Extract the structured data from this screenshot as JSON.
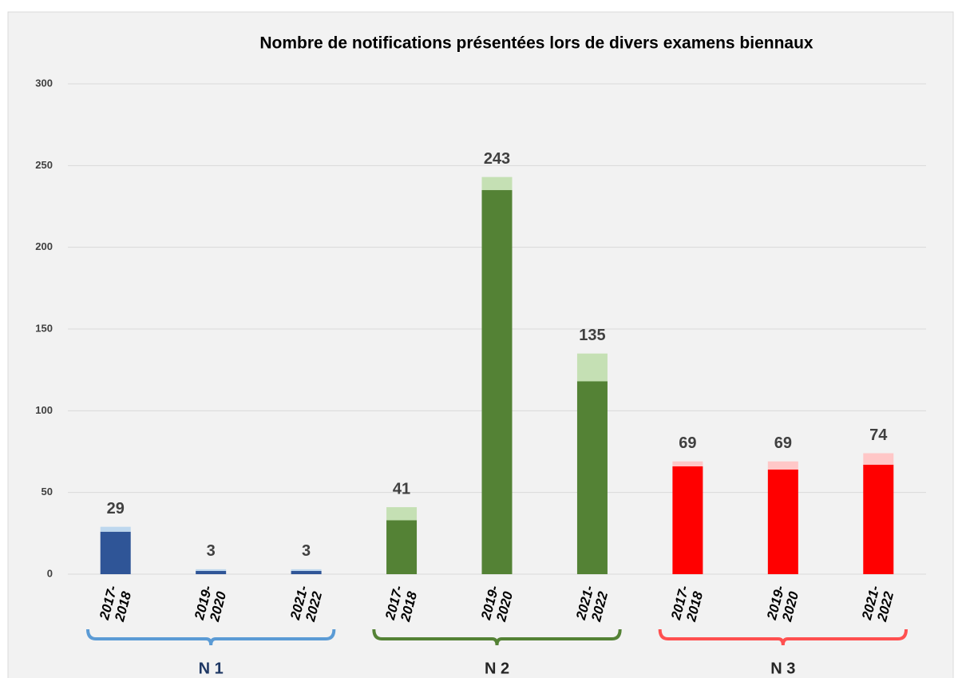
{
  "chart_data": {
    "type": "stacked_bar",
    "title": "Nombre de notifications présentées lors de divers examens biennaux",
    "ylim": [
      0,
      300
    ],
    "yticks": [
      0,
      50,
      100,
      150,
      200,
      250,
      300
    ],
    "grid": true,
    "groups": [
      {
        "name": "N 1",
        "color": "#5b9bd5",
        "label_color": "#1f3864",
        "bar_colors": [
          "#2f5597",
          "#bdd7ee"
        ],
        "categories": [
          "2017-\n2018",
          "2019-\n2020",
          "2021-\n2022"
        ],
        "values": [
          26,
          2,
          2
        ],
        "extra": [
          3,
          1,
          1
        ],
        "totals": [
          29,
          3,
          3
        ]
      },
      {
        "name": "N 2",
        "color": "#548235",
        "label_color": "#262626",
        "bar_colors": [
          "#548235",
          "#c5e0b4"
        ],
        "categories": [
          "2017-\n2018",
          "2019-\n2020",
          "2021-\n2022"
        ],
        "values": [
          33,
          235,
          118
        ],
        "extra": [
          8,
          8,
          17
        ],
        "totals": [
          41,
          243,
          135
        ]
      },
      {
        "name": "N 3",
        "color": "#ff5050",
        "label_color": "#262626",
        "bar_colors": [
          "#ff0000",
          "#ffc7c7"
        ],
        "categories": [
          "2017-\n2018",
          "2019-\n2020",
          "2021-\n2022"
        ],
        "values": [
          66,
          64,
          67
        ],
        "extra": [
          3,
          5,
          7
        ],
        "totals": [
          69,
          69,
          74
        ]
      }
    ]
  }
}
